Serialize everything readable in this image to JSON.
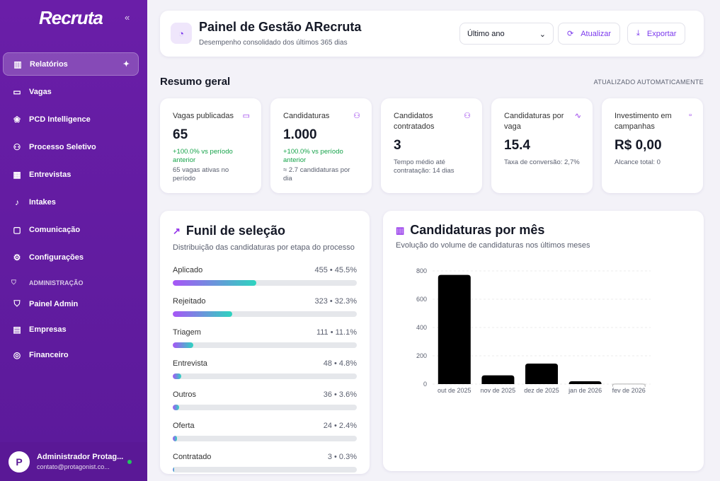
{
  "sidebar": {
    "logo": "Recruta",
    "items": [
      {
        "label": "Relatórios",
        "icon": "bar-chart-icon"
      },
      {
        "label": "Vagas",
        "icon": "briefcase-icon"
      },
      {
        "label": "PCD Intelligence",
        "icon": "brain-icon"
      },
      {
        "label": "Processo Seletivo",
        "icon": "user-check-icon"
      },
      {
        "label": "Entrevistas",
        "icon": "calendar-icon"
      },
      {
        "label": "Intakes",
        "icon": "microphone-icon"
      },
      {
        "label": "Comunicação",
        "icon": "message-icon"
      },
      {
        "label": "Configurações",
        "icon": "gear-icon"
      }
    ],
    "admin_section": "ADMINISTRAÇÃO",
    "admin_items": [
      {
        "label": "Painel Admin",
        "icon": "shield-icon"
      },
      {
        "label": "Empresas",
        "icon": "building-icon"
      },
      {
        "label": "Financeiro",
        "icon": "coins-icon"
      }
    ],
    "user": {
      "name": "Administrador Protag...",
      "email": "contato@protagonist.co..."
    }
  },
  "header": {
    "title": "Painel de Gestão ARecruta",
    "subtitle": "Desempenho consolidado dos últimos 365 dias",
    "period": "Último ano",
    "refresh": "Atualizar",
    "export": "Exportar"
  },
  "summary": {
    "title": "Resumo geral",
    "auto": "ATUALIZADO AUTOMATICAMENTE",
    "kpis": [
      {
        "label": "Vagas publicadas",
        "value": "65",
        "delta": "+100.0% vs período anterior",
        "note": "65 vagas ativas no período"
      },
      {
        "label": "Candidaturas",
        "value": "1.000",
        "delta": "+100.0% vs período anterior",
        "note": "≈ 2.7 candidaturas por dia"
      },
      {
        "label": "Candidatos contratados",
        "value": "3",
        "note": "Tempo médio até contratação: 14 dias"
      },
      {
        "label": "Candidaturas por vaga",
        "value": "15.4",
        "note": "Taxa de conversão: 2,7%"
      },
      {
        "label": "Investimento em campanhas",
        "value": "R$ 0,00",
        "note": "Alcance total: 0"
      }
    ]
  },
  "funnel": {
    "title": "Funil de seleção",
    "subtitle": "Distribuição das candidaturas por etapa do processo",
    "stages": [
      {
        "label": "Aplicado",
        "value": "455 • 45.5%",
        "pct": 45.5
      },
      {
        "label": "Rejeitado",
        "value": "323 • 32.3%",
        "pct": 32.3
      },
      {
        "label": "Triagem",
        "value": "111 • 11.1%",
        "pct": 11.1
      },
      {
        "label": "Entrevista",
        "value": "48 • 4.8%",
        "pct": 4.8
      },
      {
        "label": "Outros",
        "value": "36 • 3.6%",
        "pct": 3.6
      },
      {
        "label": "Oferta",
        "value": "24 • 2.4%",
        "pct": 2.4
      },
      {
        "label": "Contratado",
        "value": "3 • 0.3%",
        "pct": 0.3
      }
    ]
  },
  "chart_card": {
    "title": "Candidaturas por mês",
    "subtitle": "Evolução do volume de candidaturas nos últimos meses"
  },
  "chart_data": {
    "type": "bar",
    "categories": [
      "out de 2025",
      "nov de 2025",
      "dez de 2025",
      "jan de 2026",
      "fev de 2026"
    ],
    "values": [
      772,
      62,
      145,
      20,
      1
    ],
    "ylim": [
      0,
      800
    ],
    "yticks": [
      "0",
      "200",
      "400",
      "600",
      "800"
    ],
    "grid": true,
    "color": "#000000"
  }
}
